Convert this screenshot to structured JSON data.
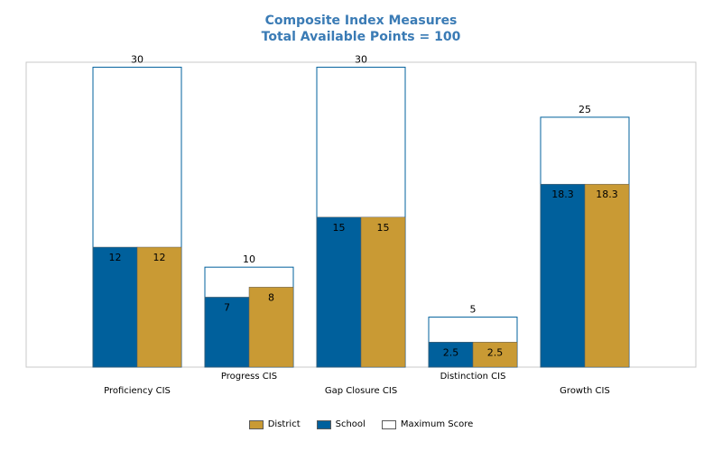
{
  "chart_data": {
    "type": "bar",
    "title": "Composite Index Measures",
    "subtitle": "Total Available Points = 100",
    "categories": [
      "Proficiency CIS",
      "Progress CIS",
      "Gap Closure CIS",
      "Distinction CIS",
      "Growth CIS"
    ],
    "series": [
      {
        "name": "School",
        "values": [
          12,
          7,
          15,
          2.5,
          18.3
        ],
        "color": "#00609c"
      },
      {
        "name": "District",
        "values": [
          12,
          8,
          15,
          2.5,
          18.3
        ],
        "color": "#c99a34"
      },
      {
        "name": "Maximum Score",
        "values": [
          30,
          10,
          30,
          5,
          25
        ],
        "color": "#ffffff"
      }
    ],
    "ylim": [
      0,
      30.5
    ],
    "legend_position": "bottom",
    "grid": false
  },
  "legend": {
    "items": [
      {
        "label": "District",
        "color": "#c99a34"
      },
      {
        "label": "School",
        "color": "#00609c"
      },
      {
        "label": "Maximum Score",
        "color": "#ffffff"
      }
    ]
  }
}
